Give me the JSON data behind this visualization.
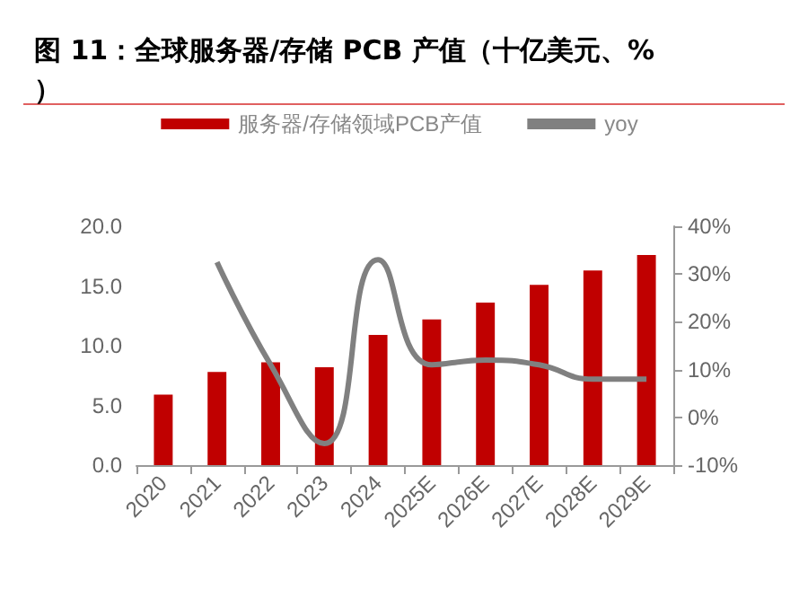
{
  "chart_data": {
    "type": "bar",
    "title": "图 11：全球服务器/存储 PCB 产值（十亿美元、%）",
    "categories": [
      "2020",
      "2021",
      "2022",
      "2023",
      "2024",
      "2025E",
      "2026E",
      "2027E",
      "2028E",
      "2029E"
    ],
    "series": [
      {
        "name": "服务器/存储领域PCB产值",
        "color": "#c00000",
        "values": [
          5.9,
          7.8,
          8.6,
          8.2,
          10.9,
          12.2,
          13.6,
          15.1,
          16.3,
          17.6
        ]
      },
      {
        "name": "yoy",
        "type": "line",
        "axis": "y2",
        "color": "#808080",
        "values": [
          null,
          32.5,
          11,
          -5.5,
          33,
          11,
          12,
          11,
          8,
          8
        ]
      }
    ],
    "ylim": [
      0,
      20
    ],
    "yticks": [
      {
        "value": 0,
        "label": "0.0"
      },
      {
        "value": 5,
        "label": "5.0"
      },
      {
        "value": 10,
        "label": "10.0"
      },
      {
        "value": 15,
        "label": "15.0"
      },
      {
        "value": 20,
        "label": "20.0"
      }
    ],
    "y2lim": [
      -10,
      40
    ],
    "y2ticks": [
      {
        "value": -10,
        "label": "-10%"
      },
      {
        "value": 0,
        "label": "0%"
      },
      {
        "value": 10,
        "label": "10%"
      },
      {
        "value": 20,
        "label": "20%"
      },
      {
        "value": 30,
        "label": "30%"
      },
      {
        "value": 40,
        "label": "40%"
      }
    ],
    "legend": "top",
    "grid": false,
    "marker": "none"
  }
}
